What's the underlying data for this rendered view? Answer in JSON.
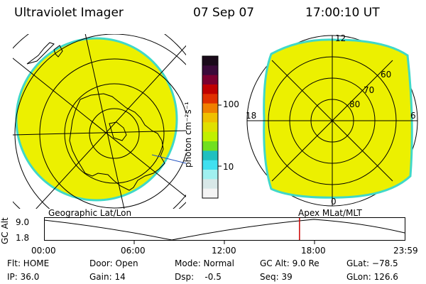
{
  "header": {
    "title": "Ultraviolet Imager",
    "date": "07 Sep 07",
    "time": "17:00:10 UT"
  },
  "colorbar": {
    "label": "photon cm⁻²s⁻¹",
    "ticks": [
      "100",
      "10"
    ],
    "colors": [
      "#1a0a1a",
      "#3a0a3a",
      "#7a0030",
      "#c00000",
      "#e03000",
      "#f08000",
      "#f0c000",
      "#e0e000",
      "#c0f000",
      "#70e020",
      "#20c0c0",
      "#40e0f0",
      "#a0f0f0",
      "#d8e8e8",
      "#f4f4f4"
    ]
  },
  "left_map": {
    "caption": "Geographic Lat/Lon",
    "disk_color": "#ecf000",
    "rim_color": "#40d8c8"
  },
  "right_map": {
    "caption": "Apex MLat/MLT",
    "lat_labels": [
      "60",
      "70",
      "80"
    ],
    "mlt_labels": {
      "top": "12",
      "left": "18",
      "right": "6",
      "bottom": "0"
    }
  },
  "timeline": {
    "ylabel": "GC Alt",
    "yticks": [
      "9.0",
      "1.8"
    ],
    "xticks": [
      "00:00",
      "06:00",
      "12:00",
      "18:00",
      "23:59"
    ],
    "marker_color": "#cc0000",
    "marker_time_hours": 17.0
  },
  "info": {
    "flt": "Flt: HOME",
    "ip": "IP: 36.0",
    "door": "Door: Open",
    "gain": "Gain: 14",
    "mode": "Mode: Normal",
    "dsp": "Dsp:    -0.5",
    "gcalt": "GC Alt: 9.0 Re",
    "seq": "Seq: 39",
    "glat": "GLat: −78.5",
    "glon": "GLon: 126.6"
  }
}
